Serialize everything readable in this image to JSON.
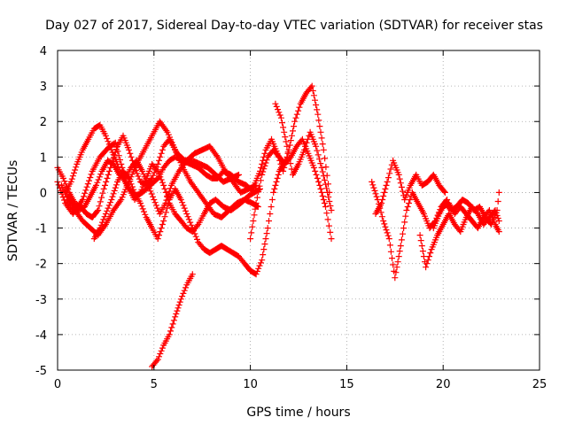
{
  "chart_data": {
    "type": "scatter",
    "title": "Day 027 of 2017, Sidereal Day-to-day VTEC variation (SDTVAR) for receiver stas",
    "xlabel": "GPS time / hours",
    "ylabel": "SDTVAR / TECUs",
    "xlim": [
      0,
      25
    ],
    "ylim": [
      -5,
      4
    ],
    "xticks": [
      0,
      5,
      10,
      15,
      20,
      25
    ],
    "yticks": [
      -5,
      -4,
      -3,
      -2,
      -1,
      0,
      1,
      2,
      3,
      4
    ],
    "grid": true,
    "marker": "plus",
    "color": "#ff0000",
    "series": [
      {
        "name": "trace-01",
        "x": [
          0.0,
          0.4,
          0.8,
          1.3,
          1.8,
          2.2,
          2.7,
          3.0,
          3.3,
          3.6,
          4.0,
          4.4,
          4.8,
          5.2,
          5.5,
          5.8,
          6.1,
          6.5,
          6.9,
          7.3,
          7.7,
          8.0,
          8.3,
          8.6,
          9.0,
          9.4,
          9.8,
          10.2,
          10.5
        ],
        "y": [
          0.3,
          -0.3,
          -0.6,
          -0.2,
          0.6,
          1.0,
          1.3,
          1.4,
          0.8,
          0.2,
          -0.1,
          0.0,
          0.2,
          0.4,
          0.7,
          0.9,
          1.0,
          0.9,
          0.8,
          0.7,
          0.5,
          0.4,
          0.4,
          0.6,
          0.5,
          0.3,
          0.2,
          0.0,
          0.1
        ]
      },
      {
        "name": "trace-02",
        "x": [
          0.0,
          0.3,
          0.6,
          0.9,
          1.2,
          1.5,
          1.8,
          2.1,
          2.4,
          2.8,
          3.1,
          3.4,
          3.7,
          4.0,
          4.3,
          4.6,
          4.9,
          5.2,
          5.5,
          5.8,
          6.2,
          6.6,
          7.0,
          7.4,
          7.8,
          8.2,
          8.6,
          9.0,
          9.4
        ],
        "y": [
          0.7,
          0.4,
          0.0,
          -0.3,
          -0.4,
          -0.6,
          -0.7,
          -0.5,
          0.1,
          0.8,
          1.3,
          1.6,
          1.2,
          0.7,
          0.3,
          0.2,
          0.4,
          0.8,
          1.3,
          1.5,
          1.1,
          0.9,
          0.9,
          0.8,
          0.7,
          0.5,
          0.3,
          0.4,
          0.5
        ]
      },
      {
        "name": "trace-03",
        "x": [
          0.2,
          0.5,
          0.8,
          1.1,
          1.4,
          1.7,
          2.0,
          2.3,
          2.6,
          2.9,
          3.2,
          3.5,
          3.8,
          4.1,
          4.4,
          4.7,
          5.0,
          5.3,
          5.6,
          5.9,
          6.3,
          6.7,
          7.1,
          7.5,
          7.9,
          8.3,
          8.7,
          9.1,
          9.5,
          9.9,
          10.3
        ],
        "y": [
          0.2,
          -0.1,
          -0.3,
          -0.5,
          -0.4,
          -0.1,
          0.2,
          0.6,
          0.9,
          0.8,
          0.5,
          0.4,
          0.7,
          0.9,
          0.6,
          0.2,
          -0.2,
          -0.6,
          -0.3,
          0.2,
          0.6,
          0.9,
          1.1,
          1.2,
          1.3,
          1.0,
          0.6,
          0.3,
          0.0,
          0.1,
          0.2
        ]
      },
      {
        "name": "trace-04",
        "x": [
          0.4,
          0.7,
          1.0,
          1.3,
          1.6,
          1.9,
          2.2,
          2.5,
          2.8,
          3.1,
          3.4,
          3.7,
          4.0,
          4.3,
          4.6,
          4.9,
          5.2,
          5.5,
          5.8,
          6.1,
          6.4,
          6.7,
          7.0,
          7.3,
          7.6,
          7.9,
          8.2,
          8.6,
          9.0,
          9.5,
          9.9,
          10.2
        ],
        "y": [
          0.0,
          0.3,
          0.8,
          1.2,
          1.5,
          1.8,
          1.9,
          1.6,
          1.2,
          0.8,
          0.4,
          0.1,
          -0.2,
          0.0,
          0.4,
          0.8,
          0.6,
          0.2,
          -0.3,
          -0.6,
          -0.8,
          -1.0,
          -1.1,
          -0.9,
          -0.6,
          -0.3,
          -0.2,
          -0.4,
          -0.5,
          -0.3,
          -0.1,
          0.0
        ]
      },
      {
        "name": "trace-05",
        "x": [
          0.5,
          0.9,
          1.3,
          1.7,
          2.1,
          2.5,
          2.9,
          3.3,
          3.7,
          4.1,
          4.5,
          4.9,
          5.3,
          5.7,
          6.1,
          6.5,
          6.9,
          7.3,
          7.7,
          8.1,
          8.5,
          8.9,
          9.3,
          9.7,
          10.1,
          10.4
        ],
        "y": [
          -0.2,
          -0.5,
          -0.8,
          -1.0,
          -1.2,
          -0.9,
          -0.5,
          -0.2,
          0.3,
          0.8,
          1.2,
          1.6,
          2.0,
          1.7,
          1.2,
          0.7,
          0.3,
          0.0,
          -0.3,
          -0.6,
          -0.7,
          -0.5,
          -0.3,
          -0.2,
          -0.3,
          -0.4
        ]
      },
      {
        "name": "trace-06",
        "x": [
          1.9,
          2.2,
          2.5,
          2.8,
          3.1,
          3.4,
          3.7,
          4.0,
          4.3,
          4.6,
          4.9,
          5.2,
          5.5,
          5.8,
          6.1,
          6.4,
          6.7,
          7.0,
          7.3,
          7.6,
          7.9,
          8.2,
          8.5,
          8.8,
          9.1,
          9.4,
          9.7,
          10.0,
          10.3,
          10.6,
          10.9,
          11.2,
          11.5,
          11.8
        ],
        "y": [
          -1.3,
          -1.0,
          -0.6,
          -0.2,
          0.3,
          0.6,
          0.4,
          0.0,
          -0.3,
          -0.7,
          -1.0,
          -1.3,
          -0.8,
          -0.2,
          0.1,
          -0.2,
          -0.6,
          -1.0,
          -1.4,
          -1.6,
          -1.7,
          -1.6,
          -1.5,
          -1.6,
          -1.7,
          -1.8,
          -2.0,
          -2.2,
          -2.3,
          -1.9,
          -1.0,
          0.0,
          0.6,
          0.9
        ]
      },
      {
        "name": "trace-07",
        "x": [
          4.9,
          5.2,
          5.5,
          5.8,
          6.1,
          6.4,
          6.7,
          7.0
        ],
        "y": [
          -4.9,
          -4.7,
          -4.3,
          -4.0,
          -3.5,
          -3.0,
          -2.6,
          -2.3
        ]
      },
      {
        "name": "trace-08",
        "x": [
          10.0,
          10.3,
          10.6,
          10.9,
          11.2,
          11.5,
          11.8,
          12.1,
          12.4,
          12.7,
          13.0,
          13.3,
          13.6,
          13.9,
          14.2
        ],
        "y": [
          -1.3,
          -0.3,
          0.5,
          1.0,
          1.2,
          1.0,
          0.8,
          1.0,
          1.3,
          1.5,
          1.1,
          0.7,
          0.2,
          -0.4,
          -1.3
        ]
      },
      {
        "name": "trace-09",
        "x": [
          10.2,
          10.5,
          10.8,
          11.1,
          11.4,
          11.7,
          12.0,
          12.3,
          12.6,
          12.9,
          13.2,
          13.5,
          13.8,
          14.1
        ],
        "y": [
          0.2,
          0.6,
          1.2,
          1.5,
          1.1,
          0.6,
          1.2,
          2.0,
          2.5,
          2.8,
          3.0,
          2.2,
          1.2,
          0.0
        ]
      },
      {
        "name": "trace-10",
        "x": [
          11.3,
          11.6,
          11.9,
          12.2,
          12.5,
          12.8,
          13.1,
          13.4,
          13.7,
          14.0,
          14.2
        ],
        "y": [
          2.5,
          2.1,
          1.3,
          0.5,
          0.8,
          1.2,
          1.7,
          1.3,
          0.7,
          0.0,
          -0.5
        ]
      },
      {
        "name": "trace-11",
        "x": [
          16.3,
          16.6,
          16.9,
          17.2,
          17.5,
          17.8,
          18.1,
          18.4,
          18.7,
          19.0,
          19.3,
          19.6,
          19.9,
          20.2
        ],
        "y": [
          0.3,
          -0.2,
          -0.8,
          -1.3,
          -2.4,
          -1.5,
          -0.5,
          0.0,
          -0.3,
          -0.6,
          -1.0,
          -0.8,
          -0.4,
          -0.2
        ]
      },
      {
        "name": "trace-12",
        "x": [
          16.5,
          16.8,
          17.1,
          17.4,
          17.7,
          18.0,
          18.3,
          18.6,
          18.9,
          19.2,
          19.5,
          19.8,
          20.1
        ],
        "y": [
          -0.6,
          -0.3,
          0.3,
          0.9,
          0.5,
          -0.2,
          0.2,
          0.5,
          0.2,
          0.3,
          0.5,
          0.2,
          0.0
        ]
      },
      {
        "name": "trace-13",
        "x": [
          18.8,
          19.1,
          19.4,
          19.7,
          20.0,
          20.3,
          20.6,
          20.9,
          21.2,
          21.5,
          21.8,
          22.1,
          22.4,
          22.7,
          22.9
        ],
        "y": [
          -1.2,
          -2.1,
          -1.6,
          -1.2,
          -0.9,
          -0.6,
          -0.9,
          -1.1,
          -0.7,
          -0.4,
          -0.6,
          -0.9,
          -0.7,
          -0.5,
          -0.8
        ]
      },
      {
        "name": "trace-14",
        "x": [
          19.5,
          19.8,
          20.1,
          20.4,
          20.7,
          21.0,
          21.3,
          21.6,
          21.9,
          22.2,
          22.5,
          22.8,
          22.9
        ],
        "y": [
          -1.0,
          -0.6,
          -0.3,
          -0.5,
          -0.4,
          -0.2,
          -0.3,
          -0.5,
          -0.4,
          -0.7,
          -0.9,
          -0.5,
          0.0
        ]
      },
      {
        "name": "trace-15",
        "x": [
          20.0,
          20.3,
          20.6,
          20.9,
          21.2,
          21.5,
          21.8,
          22.1,
          22.4,
          22.7,
          22.9
        ],
        "y": [
          -0.4,
          -0.3,
          -0.6,
          -0.4,
          -0.6,
          -0.8,
          -1.0,
          -0.7,
          -0.5,
          -0.9,
          -1.1
        ]
      }
    ]
  }
}
